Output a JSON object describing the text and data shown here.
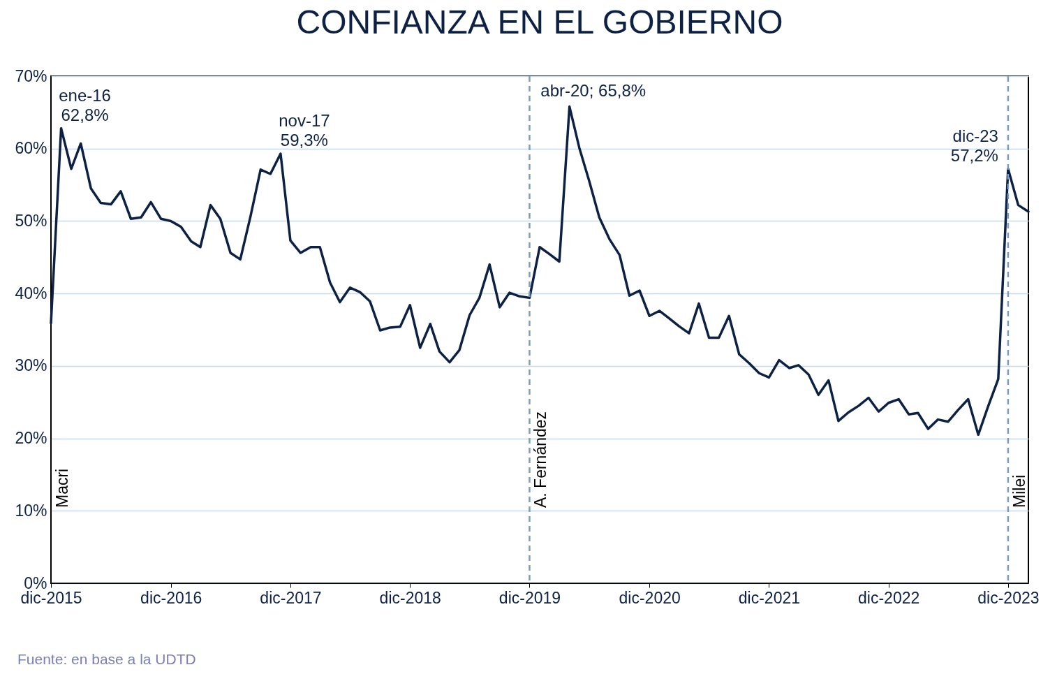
{
  "chart_data": {
    "type": "line",
    "title": "CONFIANZA EN EL GOBIERNO",
    "x": [
      "2015-12",
      "2016-01",
      "2016-02",
      "2016-03",
      "2016-04",
      "2016-05",
      "2016-06",
      "2016-07",
      "2016-08",
      "2016-09",
      "2016-10",
      "2016-11",
      "2016-12",
      "2017-01",
      "2017-02",
      "2017-03",
      "2017-04",
      "2017-05",
      "2017-06",
      "2017-07",
      "2017-08",
      "2017-09",
      "2017-10",
      "2017-11",
      "2017-12",
      "2018-01",
      "2018-02",
      "2018-03",
      "2018-04",
      "2018-05",
      "2018-06",
      "2018-07",
      "2018-08",
      "2018-09",
      "2018-10",
      "2018-11",
      "2018-12",
      "2019-01",
      "2019-02",
      "2019-03",
      "2019-04",
      "2019-05",
      "2019-06",
      "2019-07",
      "2019-08",
      "2019-09",
      "2019-10",
      "2019-11",
      "2019-12",
      "2020-01",
      "2020-02",
      "2020-03",
      "2020-04",
      "2020-05",
      "2020-06",
      "2020-07",
      "2020-08",
      "2020-09",
      "2020-10",
      "2020-11",
      "2020-12",
      "2021-01",
      "2021-02",
      "2021-03",
      "2021-04",
      "2021-05",
      "2021-06",
      "2021-07",
      "2021-08",
      "2021-09",
      "2021-10",
      "2021-11",
      "2021-12",
      "2022-01",
      "2022-02",
      "2022-03",
      "2022-04",
      "2022-05",
      "2022-06",
      "2022-07",
      "2022-08",
      "2022-09",
      "2022-10",
      "2022-11",
      "2022-12",
      "2023-01",
      "2023-02",
      "2023-03",
      "2023-04",
      "2023-05",
      "2023-06",
      "2023-07",
      "2023-08",
      "2023-09",
      "2023-10",
      "2023-11",
      "2023-12",
      "2024-01",
      "2024-02"
    ],
    "series": [
      {
        "color": "#0d2145",
        "values": [
          35.9,
          62.8,
          57.2,
          60.7,
          54.5,
          52.5,
          52.3,
          54.1,
          50.3,
          50.5,
          52.6,
          50.3,
          50.0,
          49.2,
          47.2,
          46.4,
          52.2,
          50.3,
          45.6,
          44.7,
          50.6,
          57.1,
          56.5,
          59.3,
          47.3,
          45.6,
          46.4,
          46.4,
          41.5,
          38.8,
          40.8,
          40.2,
          38.9,
          34.9,
          35.3,
          35.4,
          38.4,
          32.5,
          35.8,
          32.0,
          30.5,
          32.2,
          37.0,
          39.4,
          44.0,
          38.1,
          40.1,
          39.6,
          39.4,
          46.4,
          45.4,
          44.4,
          65.8,
          60.1,
          55.4,
          50.5,
          47.5,
          45.3,
          39.7,
          40.4,
          36.9,
          37.6,
          36.5,
          35.5,
          34.5,
          38.6,
          33.9,
          33.9,
          36.9,
          31.6,
          30.4,
          29.0,
          28.4,
          30.8,
          29.7,
          30.1,
          28.8,
          26.0,
          28.0,
          22.4,
          23.6,
          24.5,
          25.6,
          23.7,
          24.9,
          25.4,
          23.3,
          23.5,
          21.3,
          22.6,
          22.3,
          23.9,
          25.4,
          20.5,
          24.4,
          28.2,
          57.2,
          52.2,
          51.3
        ]
      }
    ],
    "xlim": [
      "2015-12",
      "2024-02"
    ],
    "xticks": [
      {
        "value": "2015-12",
        "label": "dic-2015"
      },
      {
        "value": "2016-12",
        "label": "dic-2016"
      },
      {
        "value": "2017-12",
        "label": "dic-2017"
      },
      {
        "value": "2018-12",
        "label": "dic-2018"
      },
      {
        "value": "2019-12",
        "label": "dic-2019"
      },
      {
        "value": "2020-12",
        "label": "dic-2020"
      },
      {
        "value": "2021-12",
        "label": "dic-2021"
      },
      {
        "value": "2022-12",
        "label": "dic-2022"
      },
      {
        "value": "2023-12",
        "label": "dic-2023"
      }
    ],
    "ylim": [
      0,
      70
    ],
    "yticks": [
      {
        "value": 0,
        "label": "0%"
      },
      {
        "value": 10,
        "label": "10%"
      },
      {
        "value": 20,
        "label": "20%"
      },
      {
        "value": 30,
        "label": "30%"
      },
      {
        "value": 40,
        "label": "40%"
      },
      {
        "value": 50,
        "label": "50%"
      },
      {
        "value": 60,
        "label": "60%"
      },
      {
        "value": 70,
        "label": "70%"
      }
    ],
    "grid": "y",
    "marker": "none",
    "line_style": "solid",
    "ref_lines": [
      {
        "axis": "x",
        "value": "2019-12",
        "label": "A. Fernández",
        "color": "#7a9cc6",
        "line_style": "dashed"
      },
      {
        "axis": "x",
        "value": "2023-12",
        "label": "Milei",
        "color": "#7a9cc6",
        "line_style": "dashed"
      }
    ],
    "annotations": [
      "Macri",
      {
        "text": "ene-16\n62,8%",
        "x": "2016-01",
        "y": 62.8
      },
      {
        "text": "nov-17\n59,3%",
        "x": "2017-11",
        "y": 59.3
      },
      {
        "text": "abr-20; 65,8%",
        "x": "2020-04",
        "y": 65.8
      },
      {
        "text": "dic-23\n57,2%",
        "x": "2023-12",
        "y": 57.2
      },
      "Fuente: en base a la UDTD"
    ]
  }
}
